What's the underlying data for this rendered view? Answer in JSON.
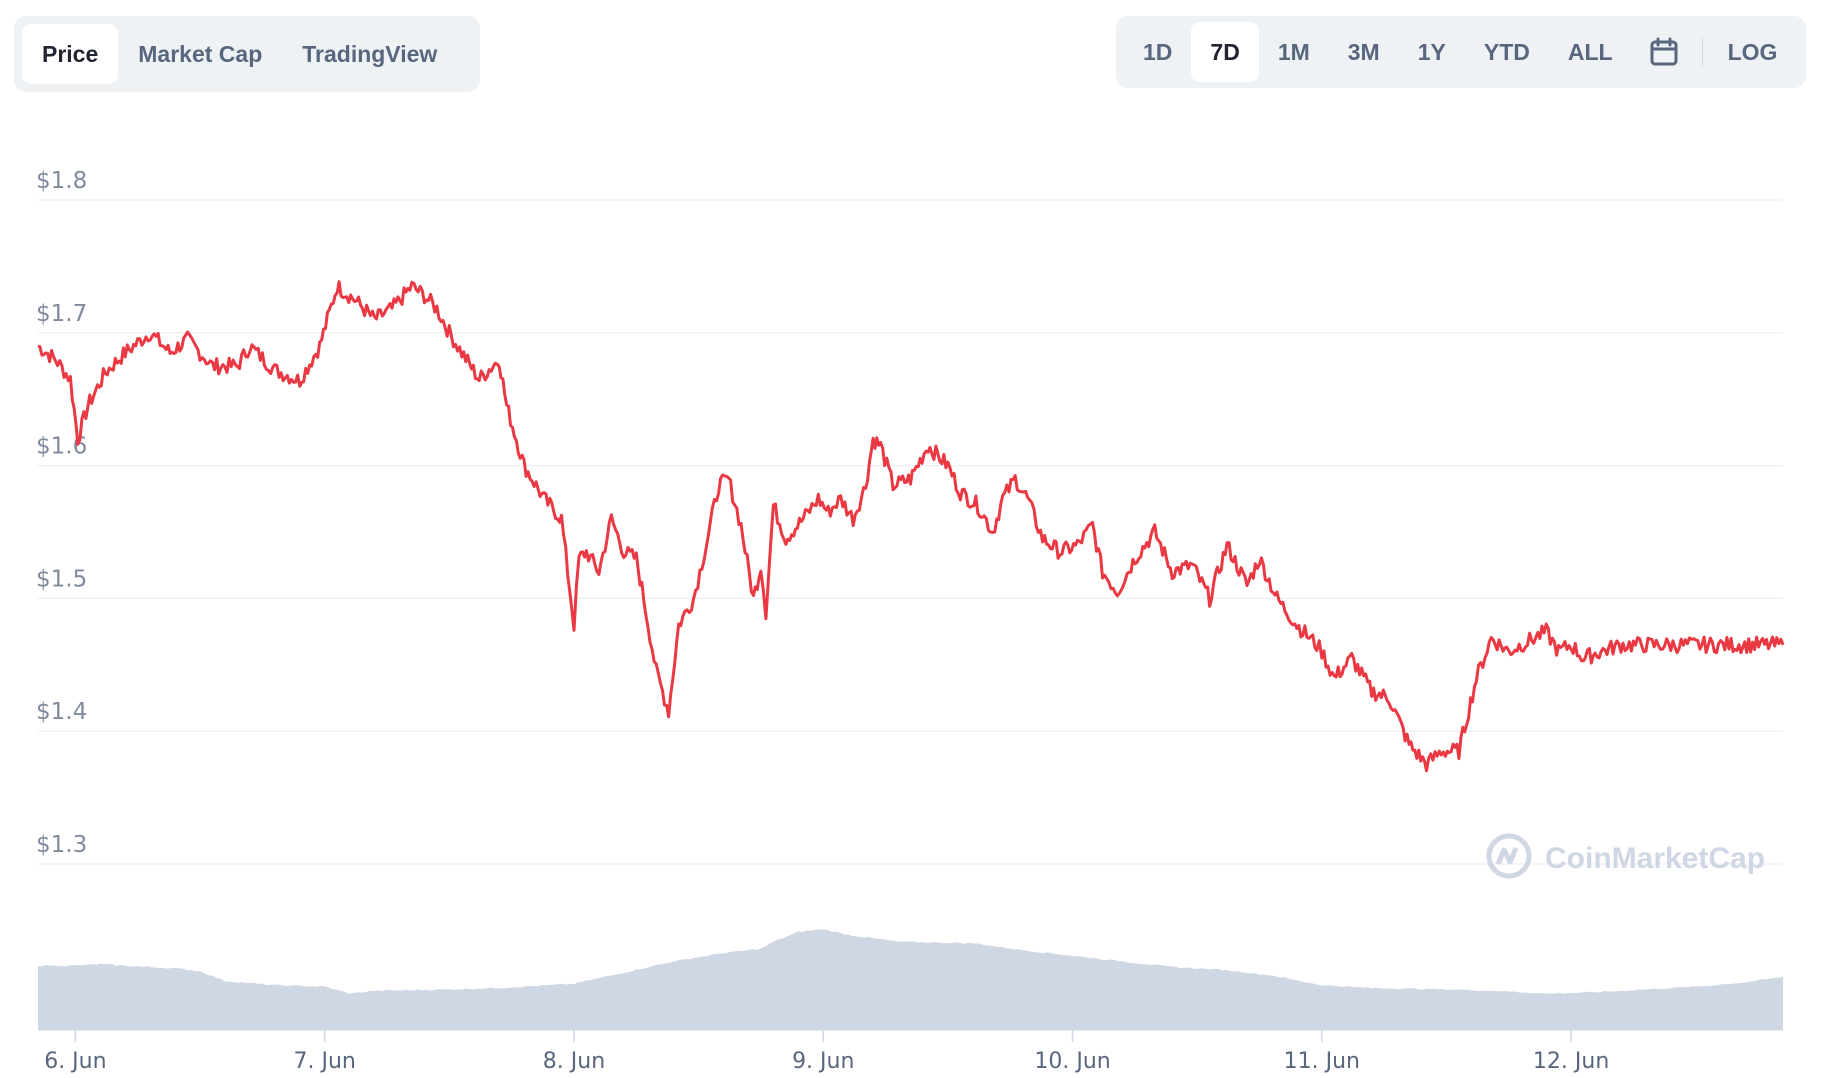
{
  "tabs": [
    {
      "label": "Price",
      "active": true
    },
    {
      "label": "Market Cap",
      "active": false
    },
    {
      "label": "TradingView",
      "active": false
    }
  ],
  "ranges": [
    {
      "label": "1D",
      "active": false
    },
    {
      "label": "7D",
      "active": true
    },
    {
      "label": "1M",
      "active": false
    },
    {
      "label": "3M",
      "active": false
    },
    {
      "label": "1Y",
      "active": false
    },
    {
      "label": "YTD",
      "active": false
    },
    {
      "label": "ALL",
      "active": false
    }
  ],
  "calendar_icon": "calendar-icon",
  "log_label": "LOG",
  "watermark": "CoinMarketCap",
  "colors": {
    "line": "#ea3943",
    "volume": "#cfd6e4",
    "grid": "#eff2f5",
    "active_text": "#222531",
    "inactive_text": "#58667e"
  },
  "chart_data": {
    "type": "line",
    "title": "",
    "xlabel": "",
    "ylabel": "",
    "y_tick_labels": [
      "$1.3",
      "$1.4",
      "$1.5",
      "$1.6",
      "$1.7",
      "$1.8"
    ],
    "y_ticks": [
      1.3,
      1.4,
      1.5,
      1.6,
      1.7,
      1.8
    ],
    "ylim": [
      1.3,
      1.8
    ],
    "x_tick_labels": [
      "6. Jun",
      "7. Jun",
      "8. Jun",
      "9. Jun",
      "10. Jun",
      "11. Jun",
      "12. Jun"
    ],
    "x_ticks_days": [
      0,
      1,
      2,
      3,
      4,
      5,
      6
    ],
    "xlim_days": [
      -0.15,
      6.85
    ],
    "grid": true,
    "series": [
      {
        "kind": "price",
        "x_days": [
          -0.15,
          -0.08,
          -0.02,
          0.01,
          0.05,
          0.12,
          0.2,
          0.3,
          0.38,
          0.45,
          0.55,
          0.65,
          0.7,
          0.8,
          0.9,
          0.98,
          1.05,
          1.12,
          1.2,
          1.27,
          1.35,
          1.4,
          1.45,
          1.5,
          1.55,
          1.62,
          1.7,
          1.73,
          1.8,
          1.88,
          1.95,
          2.0,
          2.02,
          2.05,
          2.1,
          2.15,
          2.2,
          2.25,
          2.28,
          2.33,
          2.38,
          2.42,
          2.48,
          2.53,
          2.58,
          2.62,
          2.67,
          2.72,
          2.75,
          2.77,
          2.8,
          2.85,
          2.92,
          2.98,
          3.02,
          3.07,
          3.12,
          3.17,
          3.2,
          3.23,
          3.28,
          3.35,
          3.42,
          3.5,
          3.55,
          3.62,
          3.68,
          3.72,
          3.77,
          3.82,
          3.88,
          3.95,
          4.02,
          4.08,
          4.12,
          4.18,
          4.25,
          4.33,
          4.4,
          4.48,
          4.55,
          4.62,
          4.7,
          4.75,
          4.82,
          4.9,
          4.98,
          5.0,
          5.05,
          5.12,
          5.2,
          5.27,
          5.35,
          5.42,
          5.48,
          5.55,
          5.62,
          5.68,
          5.75,
          5.8,
          5.85,
          5.9,
          5.95,
          6.0,
          6.05,
          6.12,
          6.2,
          6.25,
          6.3,
          6.35,
          6.4,
          6.45,
          6.5,
          6.55,
          6.6,
          6.65,
          6.72,
          6.8,
          6.85
        ],
        "y": [
          1.69,
          1.68,
          1.665,
          1.62,
          1.645,
          1.67,
          1.685,
          1.7,
          1.685,
          1.695,
          1.675,
          1.675,
          1.69,
          1.672,
          1.664,
          1.69,
          1.735,
          1.725,
          1.71,
          1.718,
          1.735,
          1.728,
          1.718,
          1.7,
          1.685,
          1.665,
          1.68,
          1.645,
          1.6,
          1.575,
          1.56,
          1.48,
          1.53,
          1.535,
          1.52,
          1.56,
          1.535,
          1.53,
          1.5,
          1.445,
          1.415,
          1.48,
          1.5,
          1.54,
          1.585,
          1.59,
          1.555,
          1.5,
          1.525,
          1.49,
          1.57,
          1.545,
          1.56,
          1.575,
          1.565,
          1.575,
          1.56,
          1.585,
          1.62,
          1.615,
          1.585,
          1.59,
          1.615,
          1.6,
          1.58,
          1.57,
          1.55,
          1.575,
          1.59,
          1.575,
          1.545,
          1.535,
          1.54,
          1.555,
          1.52,
          1.505,
          1.53,
          1.55,
          1.52,
          1.525,
          1.5,
          1.54,
          1.51,
          1.53,
          1.5,
          1.48,
          1.465,
          1.46,
          1.44,
          1.455,
          1.43,
          1.425,
          1.39,
          1.375,
          1.385,
          1.385,
          1.44,
          1.47,
          1.46,
          1.465,
          1.47,
          1.475,
          1.46,
          1.465,
          1.455,
          1.46,
          1.465,
          1.465,
          1.465,
          1.465,
          1.465,
          1.465,
          1.465,
          1.465,
          1.465,
          1.465,
          1.465,
          1.465,
          1.465
        ]
      },
      {
        "kind": "volume",
        "x_days": [
          -0.15,
          0.0,
          0.1,
          0.4,
          0.5,
          0.6,
          0.8,
          1.0,
          1.1,
          1.2,
          1.5,
          1.7,
          2.0,
          2.2,
          2.4,
          2.6,
          2.75,
          2.8,
          2.9,
          3.0,
          3.1,
          3.3,
          3.6,
          3.8,
          4.0,
          4.2,
          4.4,
          4.6,
          4.8,
          5.0,
          5.2,
          5.5,
          5.7,
          5.9,
          6.1,
          6.3,
          6.5,
          6.7,
          6.85
        ],
        "y_rel": [
          0.46,
          0.46,
          0.47,
          0.44,
          0.42,
          0.35,
          0.32,
          0.31,
          0.26,
          0.28,
          0.29,
          0.3,
          0.33,
          0.41,
          0.49,
          0.55,
          0.58,
          0.63,
          0.7,
          0.72,
          0.68,
          0.63,
          0.62,
          0.57,
          0.53,
          0.49,
          0.45,
          0.43,
          0.39,
          0.32,
          0.3,
          0.29,
          0.28,
          0.26,
          0.27,
          0.29,
          0.31,
          0.34,
          0.38
        ]
      }
    ]
  }
}
